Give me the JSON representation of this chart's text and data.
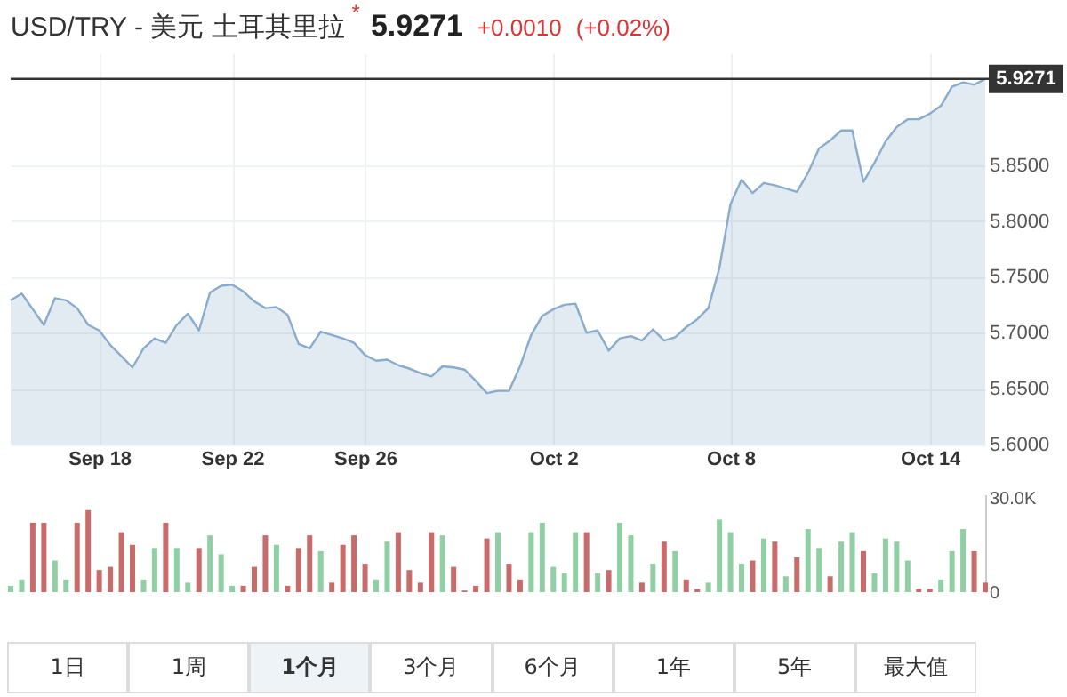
{
  "chart_data": [
    {
      "type": "area",
      "title": "USD/TRY - 美元 土耳其里拉",
      "annotations": [
        "*",
        "5.9271",
        "+0.0010",
        "(+0.02%)"
      ],
      "categories": [
        null,
        null,
        null,
        null,
        null,
        null,
        null,
        null,
        "Sep 18",
        null,
        null,
        null,
        null,
        null,
        null,
        null,
        null,
        null,
        null,
        null,
        "Sep 22",
        null,
        null,
        null,
        null,
        null,
        null,
        null,
        null,
        null,
        null,
        null,
        "Sep 26",
        null,
        null,
        null,
        null,
        null,
        null,
        null,
        null,
        null,
        null,
        null,
        null,
        null,
        null,
        null,
        null,
        "Oct 2",
        null,
        null,
        null,
        null,
        null,
        null,
        null,
        null,
        null,
        null,
        null,
        null,
        null,
        null,
        null,
        "Oct 8",
        null,
        null,
        null,
        null,
        null,
        null,
        null,
        null,
        null,
        null,
        null,
        null,
        null,
        null,
        null,
        null,
        null,
        "Oct 14",
        null,
        null,
        null,
        null,
        null
      ],
      "series": [
        {
          "color": "#8aaccc",
          "values": [
            5.729,
            5.735,
            5.721,
            5.707,
            5.731,
            5.729,
            5.722,
            5.707,
            5.702,
            5.689,
            5.679,
            5.669,
            5.686,
            5.695,
            5.691,
            5.707,
            5.717,
            5.702,
            5.736,
            5.742,
            5.743,
            5.737,
            5.728,
            5.722,
            5.723,
            5.716,
            5.69,
            5.686,
            5.701,
            5.698,
            5.695,
            5.691,
            5.68,
            5.675,
            5.676,
            5.671,
            5.668,
            5.664,
            5.661,
            5.67,
            5.669,
            5.667,
            5.657,
            5.646,
            5.648,
            5.648,
            5.67,
            5.698,
            5.715,
            5.721,
            5.725,
            5.726,
            5.7,
            5.702,
            5.684,
            5.695,
            5.697,
            5.693,
            5.703,
            5.693,
            5.696,
            5.705,
            5.712,
            5.722,
            5.758,
            5.815,
            5.837,
            5.825,
            5.834,
            5.832,
            5.829,
            5.826,
            5.843,
            5.865,
            5.872,
            5.881,
            5.881,
            5.835,
            5.852,
            5.871,
            5.884,
            5.891,
            5.891,
            5.896,
            5.903,
            5.92,
            5.924,
            5.922,
            5.927
          ]
        }
      ],
      "ylim": [
        5.6,
        5.95
      ],
      "yticks": [
        {
          "value": 5.6,
          "label": "5.6000"
        },
        {
          "value": 5.65,
          "label": "5.6500"
        },
        {
          "value": 5.7,
          "label": "5.7000"
        },
        {
          "value": 5.75,
          "label": "5.7500"
        },
        {
          "value": 5.8,
          "label": "5.8000"
        },
        {
          "value": 5.85,
          "label": "5.8500"
        }
      ],
      "ref_lines": [
        {
          "axis": "y",
          "value": 5.9271,
          "label": "5.9271",
          "color": "#333333"
        }
      ],
      "grid": true
    },
    {
      "type": "bar",
      "annotations": [
        "1日",
        "1周",
        "1个月",
        "3个月",
        "6个月",
        "1年",
        "5年",
        "最大值"
      ],
      "categories": [
        null,
        null,
        null,
        null,
        null,
        null,
        null,
        null,
        null,
        null,
        null,
        null,
        null,
        null,
        null,
        null,
        null,
        null,
        null,
        null,
        null,
        null,
        null,
        null,
        null,
        null,
        null,
        null,
        null,
        null,
        null,
        null,
        null,
        null,
        null,
        null,
        null,
        null,
        null,
        null,
        null,
        null,
        null,
        null,
        null,
        null,
        null,
        null,
        null,
        null,
        null,
        null,
        null,
        null,
        null,
        null,
        null,
        null,
        null,
        null,
        null,
        null,
        null,
        null,
        null,
        null,
        null,
        null,
        null,
        null,
        null,
        null,
        null,
        null,
        null,
        null,
        null,
        null,
        null,
        null,
        null,
        null,
        null,
        null,
        null,
        null,
        null,
        null,
        null
      ],
      "values": [
        2000,
        4000,
        22000,
        22000,
        10000,
        4000,
        22000,
        26000,
        7000,
        8000,
        19000,
        15000,
        4000,
        14000,
        22000,
        14000,
        3000,
        14000,
        18000,
        12000,
        2000,
        2000,
        8000,
        18000,
        15000,
        2000,
        14000,
        18000,
        13000,
        3000,
        15000,
        18000,
        9000,
        4000,
        16000,
        19000,
        7000,
        3000,
        19000,
        18000,
        8000,
        500,
        2000,
        17000,
        19000,
        9000,
        4000,
        19000,
        22000,
        8000,
        6000,
        19000,
        19000,
        6000,
        7000,
        22000,
        18000,
        3000,
        9000,
        16000,
        13000,
        4000,
        1000,
        3000,
        23000,
        19000,
        9000,
        10000,
        17000,
        16000,
        5000,
        11000,
        20000,
        14000,
        5000,
        16000,
        19000,
        13000,
        6000,
        17000,
        16000,
        10000,
        1000,
        1000,
        4000,
        13000,
        20000,
        13000,
        3000
      ],
      "colors": [
        "#90cfa4",
        "#90cfa4",
        "#c86b6b",
        "#c86b6b",
        "#90cfa4",
        "#90cfa4",
        "#c86b6b",
        "#c86b6b",
        "#c86b6b",
        "#c86b6b",
        "#c86b6b",
        "#c86b6b",
        "#90cfa4",
        "#90cfa4",
        "#c86b6b",
        "#90cfa4",
        "#90cfa4",
        "#c86b6b",
        "#90cfa4",
        "#90cfa4",
        "#90cfa4",
        "#c86b6b",
        "#c86b6b",
        "#c86b6b",
        "#90cfa4",
        "#c86b6b",
        "#c86b6b",
        "#c86b6b",
        "#90cfa4",
        "#c86b6b",
        "#c86b6b",
        "#c86b6b",
        "#c86b6b",
        "#90cfa4",
        "#90cfa4",
        "#c86b6b",
        "#c86b6b",
        "#c86b6b",
        "#c86b6b",
        "#90cfa4",
        "#c86b6b",
        "#c86b6b",
        "#c86b6b",
        "#c86b6b",
        "#90cfa4",
        "#c86b6b",
        "#c86b6b",
        "#90cfa4",
        "#90cfa4",
        "#90cfa4",
        "#90cfa4",
        "#90cfa4",
        "#c86b6b",
        "#90cfa4",
        "#c86b6b",
        "#90cfa4",
        "#90cfa4",
        "#c86b6b",
        "#90cfa4",
        "#c86b6b",
        "#90cfa4",
        "#c86b6b",
        "#c86b6b",
        "#90cfa4",
        "#90cfa4",
        "#90cfa4",
        "#90cfa4",
        "#c86b6b",
        "#90cfa4",
        "#c86b6b",
        "#90cfa4",
        "#c86b6b",
        "#90cfa4",
        "#90cfa4",
        "#c86b6b",
        "#90cfa4",
        "#90cfa4",
        "#c86b6b",
        "#90cfa4",
        "#90cfa4",
        "#90cfa4",
        "#90cfa4",
        "#c86b6b",
        "#c86b6b",
        "#90cfa4",
        "#90cfa4",
        "#90cfa4",
        "#c86b6b",
        "#c86b6b"
      ],
      "ylim": [
        0,
        31000
      ],
      "yticks": [
        0,
        {
          "value": 30000,
          "label": "30.0K"
        }
      ],
      "tick_labels": "y"
    }
  ]
}
